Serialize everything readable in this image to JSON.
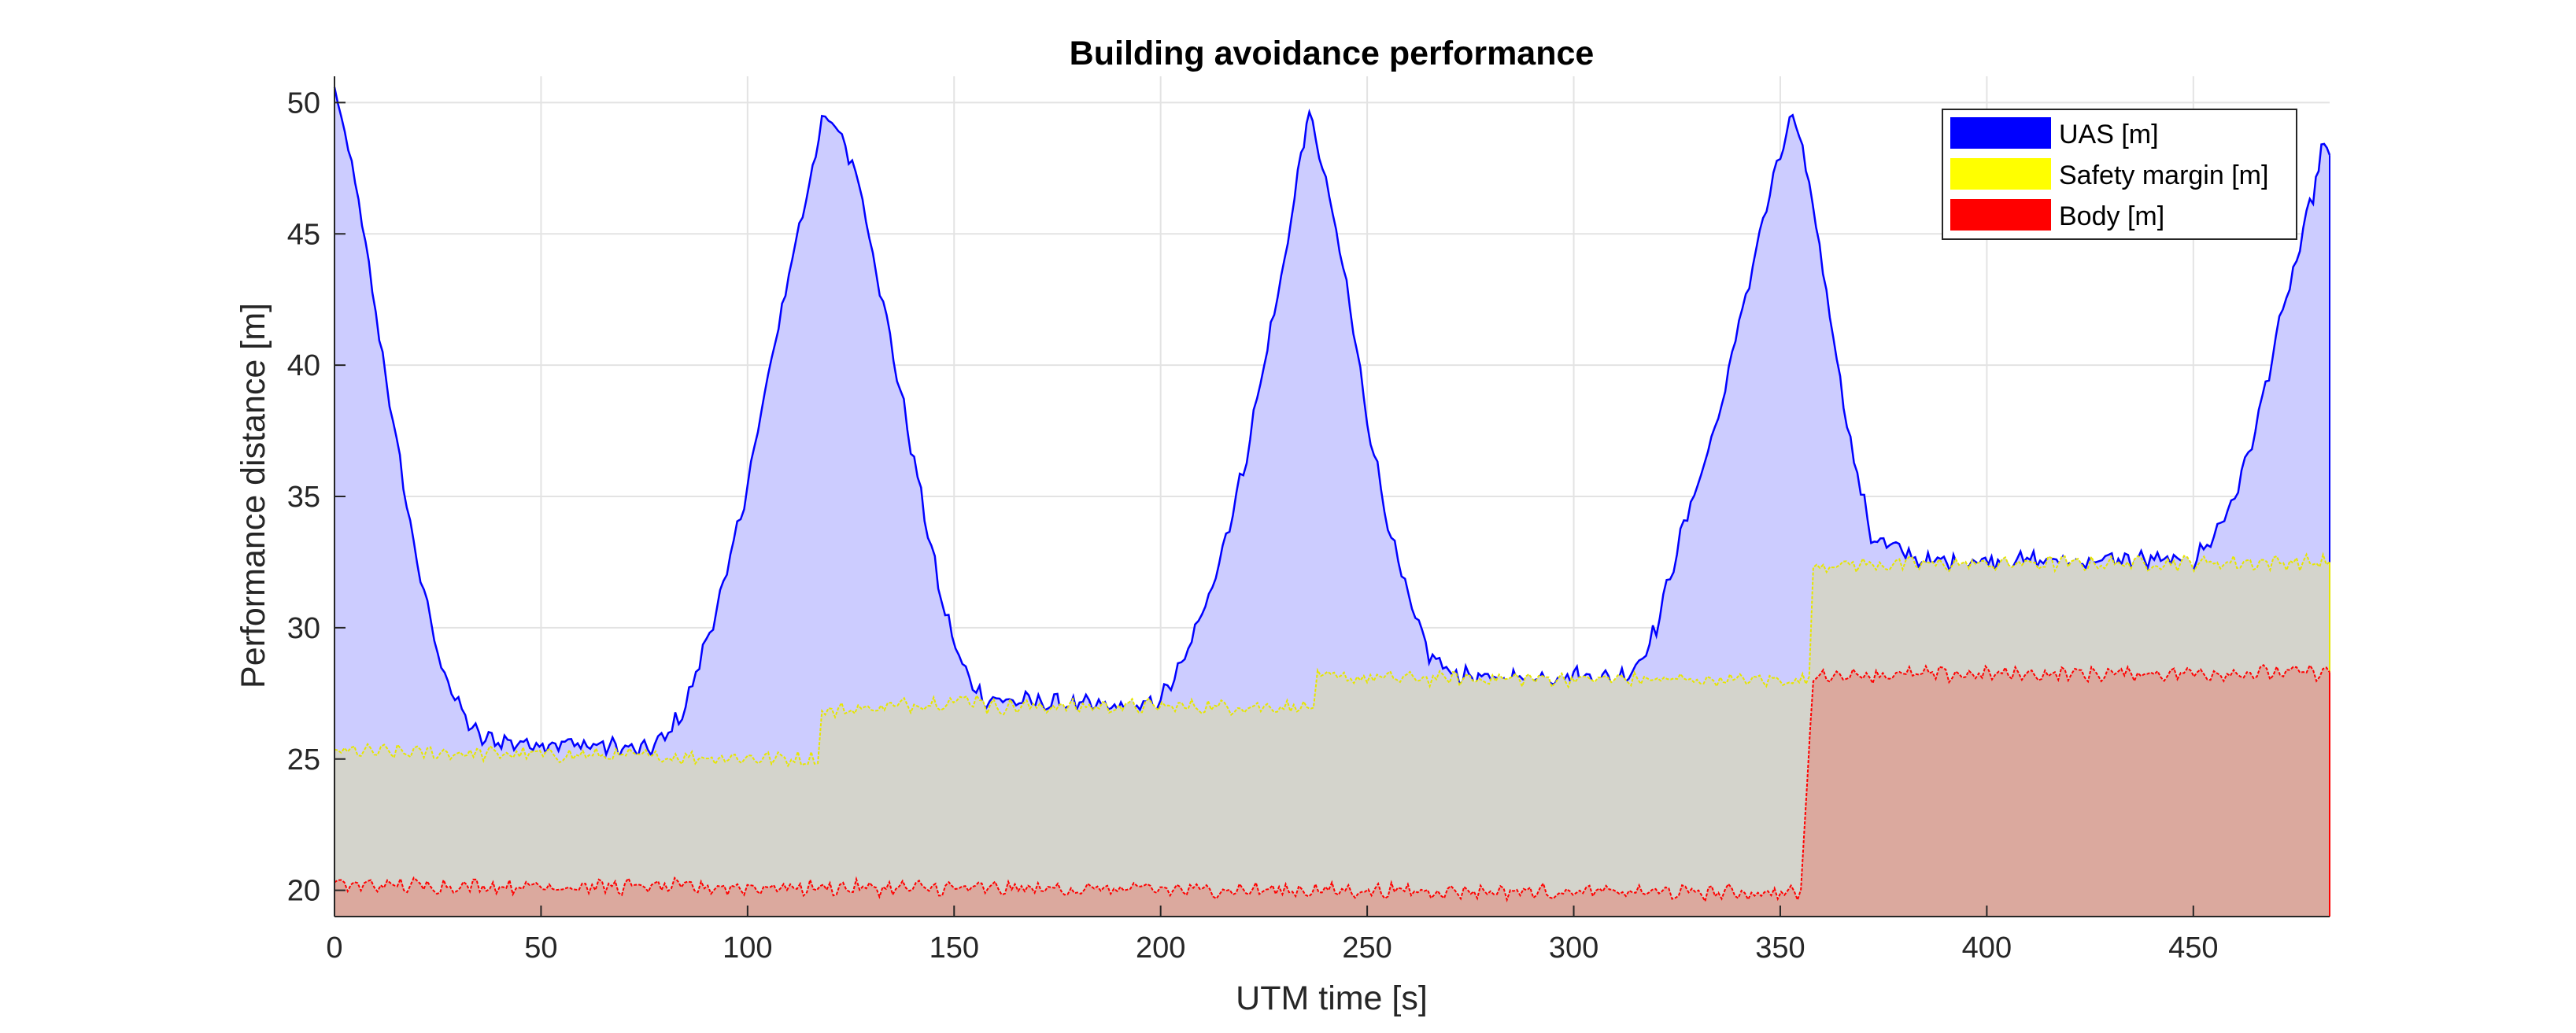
{
  "chart_data": {
    "type": "area",
    "title": "Building avoidance performance",
    "xlabel": "UTM time [s]",
    "ylabel": "Performance distance [m]",
    "xlim": [
      0,
      483
    ],
    "ylim": [
      19,
      51
    ],
    "xticks": [
      0,
      50,
      100,
      150,
      200,
      250,
      300,
      350,
      400,
      450
    ],
    "yticks": [
      20,
      25,
      30,
      35,
      40,
      45,
      50
    ],
    "grid": true,
    "legend_position": "top-right",
    "series": [
      {
        "name": "UAS [m]",
        "line_color": "#0000ff",
        "fill_color": "#ccccff",
        "points": [
          [
            0,
            50.5
          ],
          [
            5,
            47
          ],
          [
            10,
            42
          ],
          [
            15,
            37
          ],
          [
            20,
            32.5
          ],
          [
            25,
            29
          ],
          [
            30,
            27
          ],
          [
            35,
            25.8
          ],
          [
            45,
            25.6
          ],
          [
            55,
            25.6
          ],
          [
            65,
            25.5
          ],
          [
            75,
            25.3
          ],
          [
            80,
            25.8
          ],
          [
            85,
            27
          ],
          [
            90,
            29.5
          ],
          [
            95,
            32
          ],
          [
            100,
            35.5
          ],
          [
            105,
            39.5
          ],
          [
            110,
            43.5
          ],
          [
            115,
            47
          ],
          [
            118,
            49.3
          ],
          [
            122,
            49
          ],
          [
            127,
            47
          ],
          [
            132,
            43
          ],
          [
            137,
            39
          ],
          [
            142,
            35
          ],
          [
            147,
            31
          ],
          [
            152,
            28.5
          ],
          [
            157,
            27.3
          ],
          [
            165,
            27.2
          ],
          [
            175,
            27.1
          ],
          [
            185,
            27
          ],
          [
            195,
            26.9
          ],
          [
            200,
            27.3
          ],
          [
            205,
            28.5
          ],
          [
            210,
            30.5
          ],
          [
            215,
            33
          ],
          [
            220,
            36
          ],
          [
            225,
            40
          ],
          [
            230,
            44
          ],
          [
            234,
            48
          ],
          [
            236,
            49.6
          ],
          [
            240,
            47
          ],
          [
            245,
            43
          ],
          [
            250,
            38
          ],
          [
            255,
            34
          ],
          [
            260,
            31
          ],
          [
            265,
            29
          ],
          [
            270,
            28.3
          ],
          [
            280,
            28
          ],
          [
            290,
            28.1
          ],
          [
            300,
            28.2
          ],
          [
            310,
            28
          ],
          [
            315,
            28.5
          ],
          [
            320,
            30
          ],
          [
            325,
            33
          ],
          [
            330,
            35.5
          ],
          [
            335,
            38
          ],
          [
            340,
            41.5
          ],
          [
            345,
            45
          ],
          [
            350,
            48
          ],
          [
            353,
            49.5
          ],
          [
            357,
            47
          ],
          [
            362,
            42
          ],
          [
            367,
            37
          ],
          [
            372,
            33.5
          ],
          [
            378,
            33
          ],
          [
            385,
            32.5
          ],
          [
            395,
            32.5
          ],
          [
            405,
            32.6
          ],
          [
            420,
            32.5
          ],
          [
            435,
            32.6
          ],
          [
            450,
            32.5
          ],
          [
            455,
            33.5
          ],
          [
            460,
            35
          ],
          [
            465,
            37.5
          ],
          [
            470,
            41
          ],
          [
            475,
            44
          ],
          [
            479,
            46.5
          ],
          [
            481,
            48.2
          ],
          [
            483,
            48
          ]
        ]
      },
      {
        "name": "Safety margin [m]",
        "line_color": "#e6e600",
        "fill_color": "#d4d4cc",
        "points": [
          [
            0,
            25.3
          ],
          [
            117,
            25
          ],
          [
            118,
            26.8
          ],
          [
            157,
            27.3
          ],
          [
            158,
            27
          ],
          [
            237,
            27
          ],
          [
            238,
            28.1
          ],
          [
            357,
            28
          ],
          [
            358,
            32.4
          ],
          [
            483,
            32.5
          ]
        ]
      },
      {
        "name": "Body [m]",
        "line_color": "#ff0000",
        "fill_color": "#dba99e",
        "points": [
          [
            0,
            20.2
          ],
          [
            355,
            19.9
          ],
          [
            358,
            28.2
          ],
          [
            483,
            28.3
          ]
        ]
      }
    ]
  }
}
